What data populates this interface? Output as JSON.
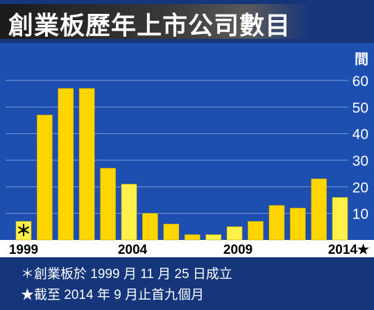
{
  "title": "創業板歷年上市公司數目",
  "notes": [
    "＊創業板於 1999 月 11 月 25 日成立",
    "★截至 2014 年 9 月止首九個月"
  ],
  "colors": {
    "background": "#16367c",
    "plot": "#1c4fb0",
    "bar_bright": "#ffd500",
    "bar_light": "#fff04a"
  },
  "chart_data": {
    "type": "bar",
    "title": "創業板歷年上市公司數目",
    "ylabel": "間",
    "ylim": [
      0,
      65
    ],
    "yticks": [
      10,
      20,
      30,
      40,
      50,
      60
    ],
    "grid": true,
    "categories": [
      "1999",
      "2000",
      "2001",
      "2002",
      "2003",
      "2004",
      "2005",
      "2006",
      "2007",
      "2008",
      "2009",
      "2010",
      "2011",
      "2012",
      "2013",
      "2014"
    ],
    "x_tick_labels": [
      {
        "category": "1999",
        "label": "1999"
      },
      {
        "category": "2004",
        "label": "2004"
      },
      {
        "category": "2009",
        "label": "2009"
      },
      {
        "category": "2014",
        "label": "2014★"
      }
    ],
    "values": [
      7,
      47,
      57,
      57,
      27,
      21,
      10,
      6,
      2,
      2,
      5,
      7,
      13,
      12,
      23,
      16
    ],
    "bar_styles": [
      "light",
      "bright",
      "bright",
      "bright",
      "bright",
      "light",
      "bright",
      "bright",
      "bright",
      "light",
      "light",
      "bright",
      "bright",
      "bright",
      "bright",
      "light"
    ],
    "annotations": [
      {
        "category": "1999",
        "text": "＊"
      }
    ]
  }
}
